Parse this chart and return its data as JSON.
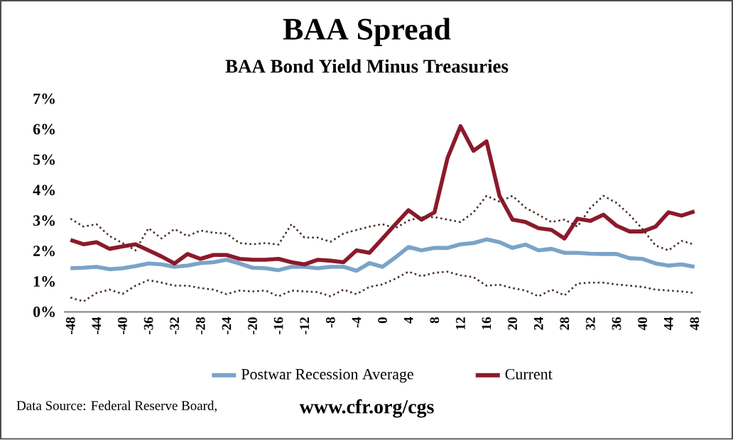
{
  "chart_data": {
    "type": "line",
    "title": "BAA Spread",
    "subtitle": "BAA Bond Yield Minus Treasuries",
    "x": [
      -48,
      -46,
      -44,
      -42,
      -40,
      -38,
      -36,
      -34,
      -32,
      -30,
      -28,
      -26,
      -24,
      -22,
      -20,
      -18,
      -16,
      -14,
      -12,
      -10,
      -8,
      -6,
      -4,
      -2,
      0,
      2,
      4,
      6,
      8,
      10,
      12,
      14,
      16,
      18,
      20,
      22,
      24,
      26,
      28,
      30,
      32,
      34,
      36,
      38,
      40,
      42,
      44,
      46,
      48
    ],
    "series": [
      {
        "name": "Postwar Recession  Average",
        "color": "#7ba3c8",
        "line_style": "solid",
        "values": [
          1.43,
          1.45,
          1.48,
          1.4,
          1.43,
          1.5,
          1.59,
          1.56,
          1.48,
          1.52,
          1.6,
          1.63,
          1.71,
          1.59,
          1.45,
          1.43,
          1.37,
          1.48,
          1.48,
          1.43,
          1.48,
          1.48,
          1.35,
          1.6,
          1.48,
          1.79,
          2.13,
          2.02,
          2.1,
          2.1,
          2.22,
          2.26,
          2.38,
          2.29,
          2.1,
          2.21,
          2.02,
          2.07,
          1.94,
          1.94,
          1.91,
          1.9,
          1.9,
          1.76,
          1.74,
          1.59,
          1.52,
          1.56,
          1.48
        ]
      },
      {
        "name": "Current",
        "color": "#8b1a2b",
        "line_style": "solid",
        "values": [
          2.36,
          2.22,
          2.29,
          2.07,
          2.15,
          2.22,
          2.02,
          1.82,
          1.59,
          1.9,
          1.74,
          1.87,
          1.87,
          1.74,
          1.71,
          1.71,
          1.74,
          1.63,
          1.56,
          1.71,
          1.68,
          1.63,
          2.02,
          1.94,
          2.41,
          2.88,
          3.34,
          3.03,
          3.27,
          5.05,
          6.1,
          5.29,
          5.6,
          3.81,
          3.03,
          2.95,
          2.75,
          2.69,
          2.41,
          3.06,
          2.99,
          3.19,
          2.83,
          2.64,
          2.64,
          2.8,
          3.27,
          3.16,
          3.3
        ]
      },
      {
        "color": "#4a3028",
        "line_style": "dotted",
        "values": [
          3.06,
          2.8,
          2.88,
          2.49,
          2.26,
          2.02,
          2.75,
          2.41,
          2.72,
          2.49,
          2.67,
          2.6,
          2.57,
          2.26,
          2.22,
          2.26,
          2.21,
          2.88,
          2.44,
          2.44,
          2.3,
          2.57,
          2.69,
          2.8,
          2.88,
          2.75,
          3.0,
          3.11,
          3.11,
          3.03,
          2.95,
          3.27,
          3.81,
          3.62,
          3.81,
          3.42,
          3.19,
          2.95,
          3.03,
          2.8,
          3.42,
          3.81,
          3.58,
          3.19,
          2.72,
          2.18,
          2.02,
          2.33,
          2.21
        ]
      },
      {
        "color": "#4a3028",
        "line_style": "dotted",
        "values": [
          0.47,
          0.34,
          0.62,
          0.73,
          0.59,
          0.86,
          1.04,
          0.96,
          0.86,
          0.86,
          0.78,
          0.73,
          0.58,
          0.7,
          0.67,
          0.7,
          0.51,
          0.7,
          0.67,
          0.65,
          0.51,
          0.73,
          0.58,
          0.82,
          0.9,
          1.09,
          1.32,
          1.17,
          1.28,
          1.32,
          1.2,
          1.14,
          0.86,
          0.89,
          0.78,
          0.7,
          0.51,
          0.73,
          0.54,
          0.93,
          0.96,
          0.96,
          0.9,
          0.86,
          0.82,
          0.73,
          0.7,
          0.67,
          0.62
        ]
      }
    ],
    "xlim": [
      -49,
      49
    ],
    "xticks": [
      -48,
      -44,
      -40,
      -36,
      -32,
      -28,
      -24,
      -20,
      -16,
      -12,
      -8,
      -4,
      0,
      4,
      8,
      12,
      16,
      20,
      24,
      28,
      32,
      36,
      40,
      44,
      48
    ],
    "ylim": [
      0,
      7
    ],
    "yticks": [
      {
        "value": 0,
        "label": "0%"
      },
      {
        "value": 1,
        "label": "1%"
      },
      {
        "value": 2,
        "label": "2%"
      },
      {
        "value": 3,
        "label": "3%"
      },
      {
        "value": 4,
        "label": "4%"
      },
      {
        "value": 5,
        "label": "5%"
      },
      {
        "value": 6,
        "label": "6%"
      },
      {
        "value": 7,
        "label": "7%"
      }
    ],
    "grid": false,
    "legend": "bottom",
    "marker": "none",
    "annotations": [
      "Data Source: Federal Reserve Board,",
      "www.cfr.org/cgs"
    ]
  }
}
